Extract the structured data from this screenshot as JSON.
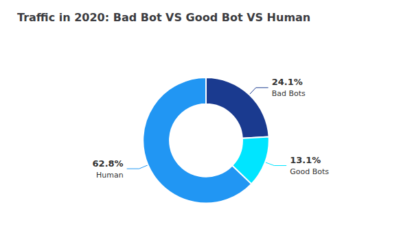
{
  "chart_data": {
    "type": "pie",
    "title": "Traffic in 2020: Bad Bot VS Good Bot VS Human",
    "categories": [
      "Bad Bots",
      "Good Bots",
      "Human"
    ],
    "values": [
      24.1,
      13.1,
      62.8
    ],
    "value_labels": [
      "24.1%",
      "13.1%",
      "62.8%"
    ],
    "colors": [
      "#1A3A8F",
      "#00E5FF",
      "#2196F3"
    ],
    "data_labels": true
  }
}
